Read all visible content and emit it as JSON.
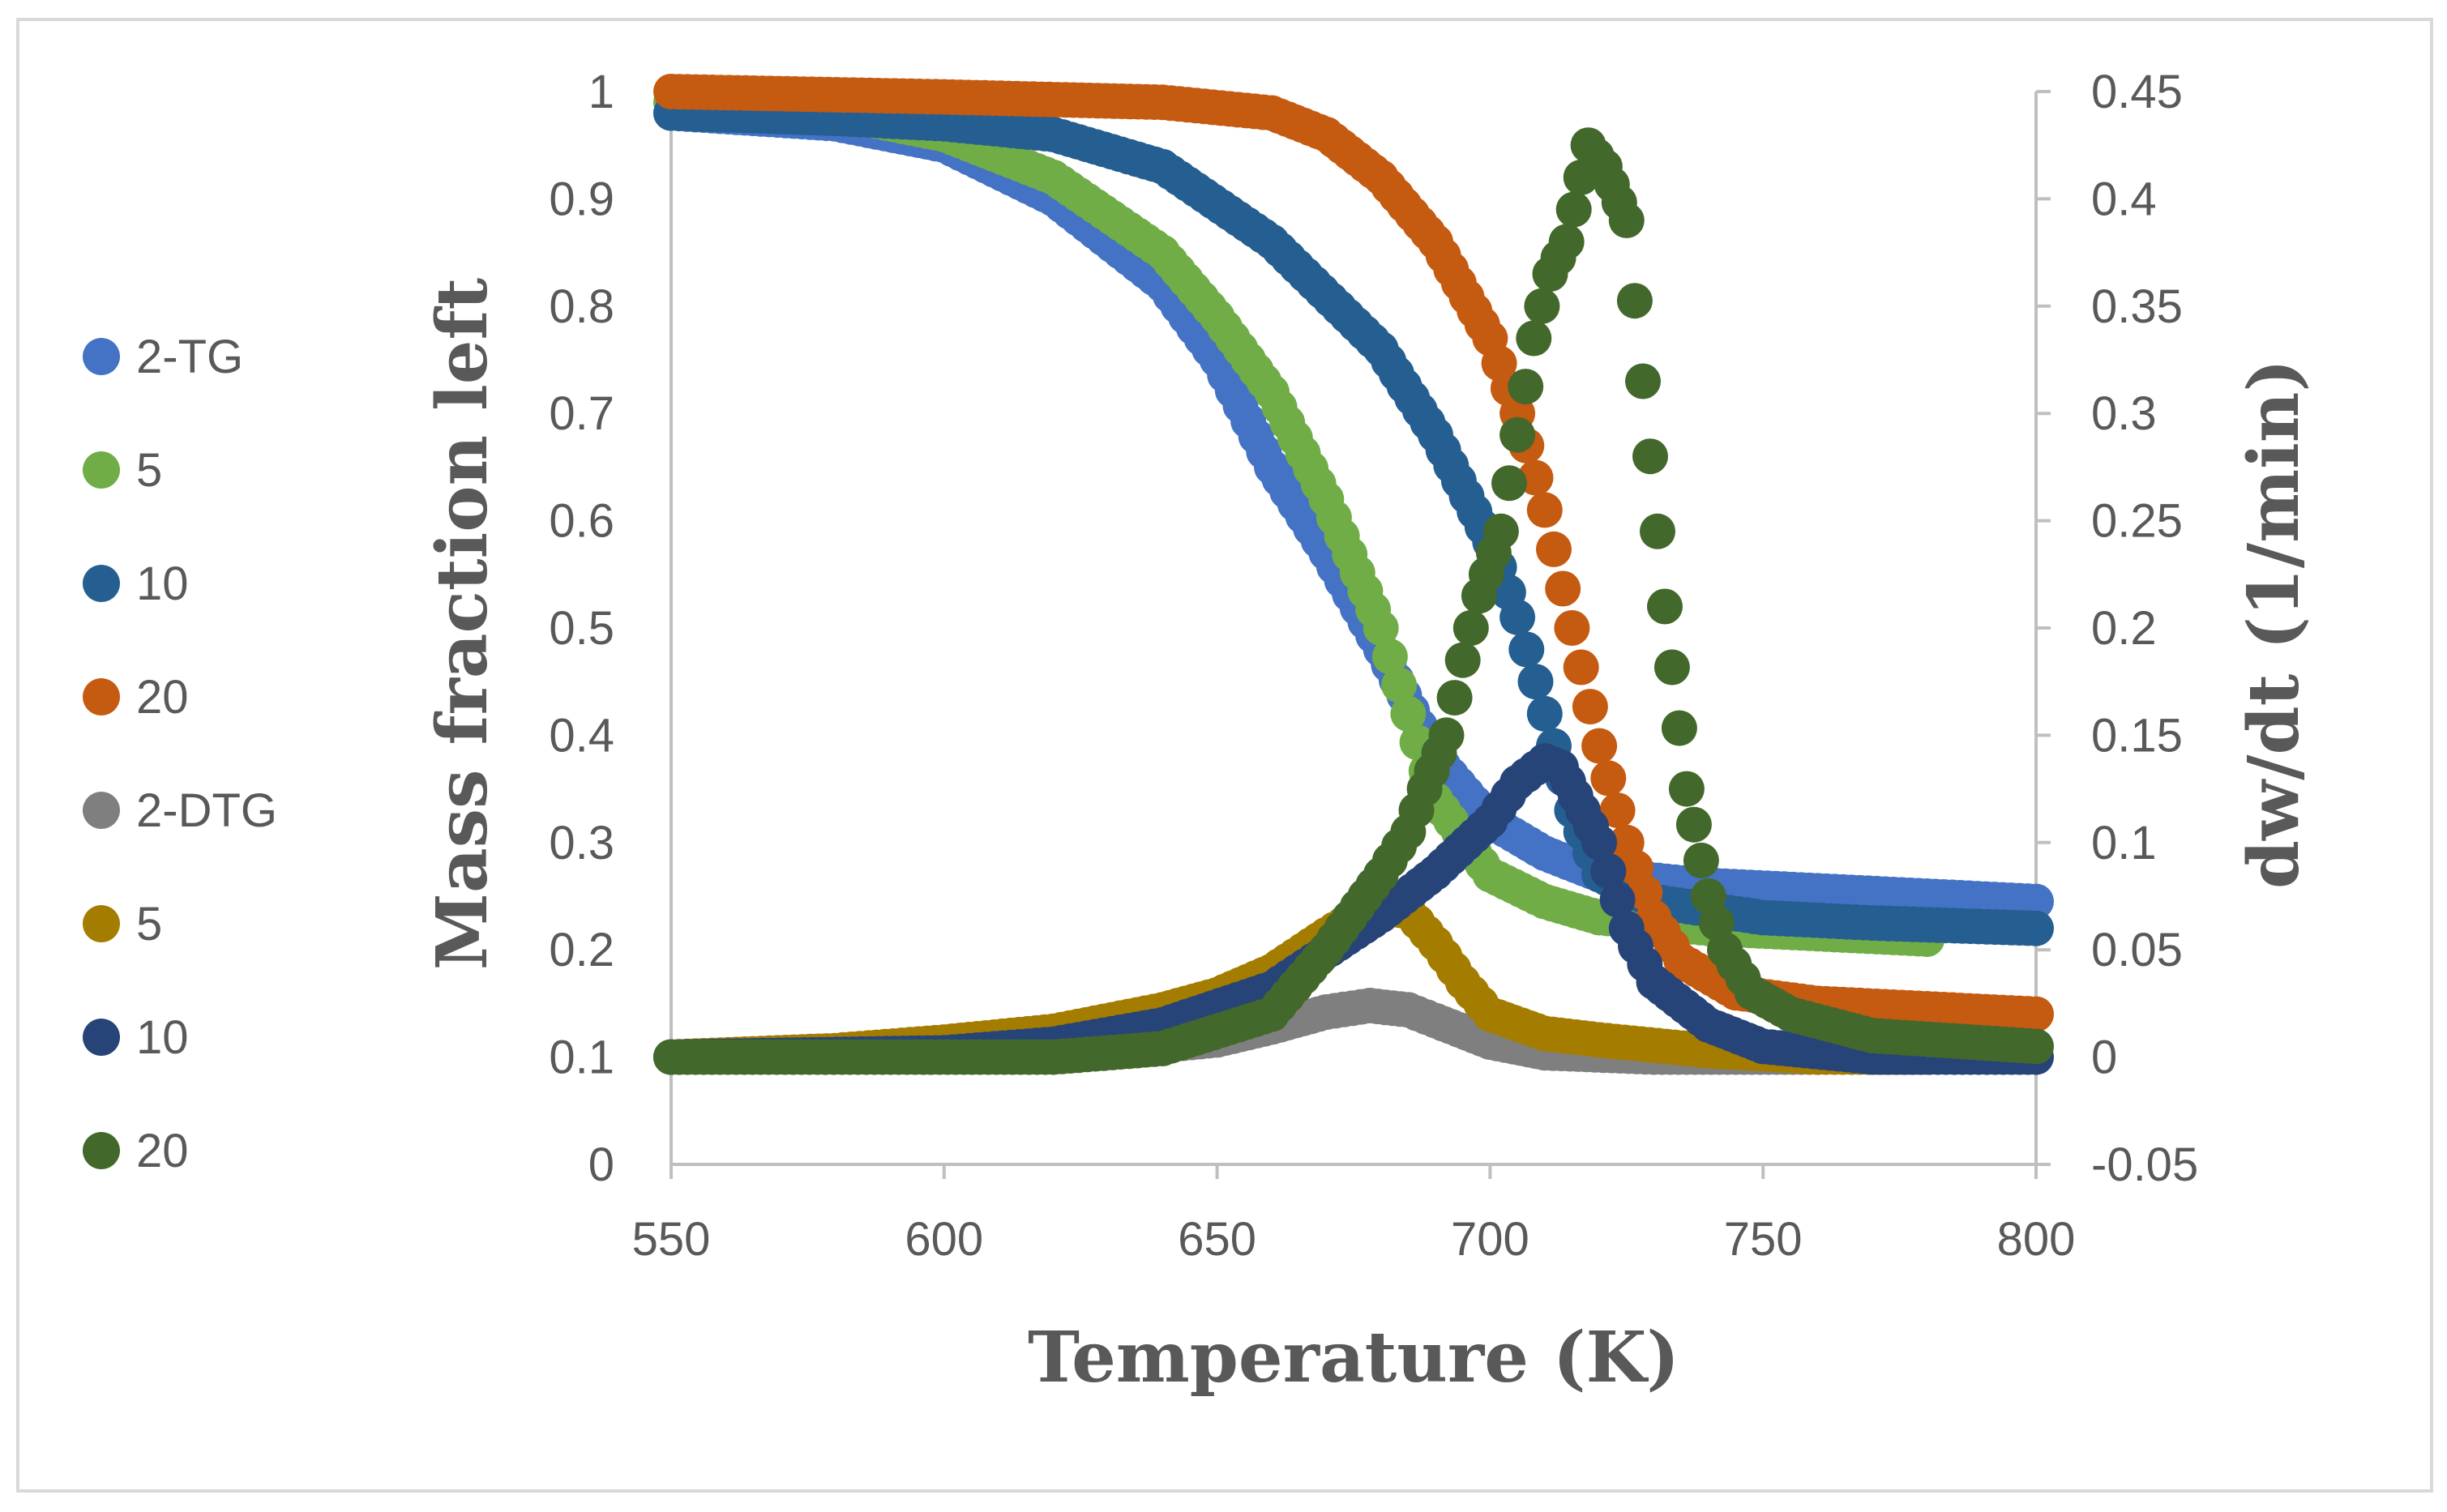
{
  "chart_data": {
    "type": "scatter",
    "title": "",
    "xlabel": "Temperature (K)",
    "ylabel": "Mass fraction left",
    "y2label": "dw/dt (1/min)",
    "xlim": [
      550,
      800
    ],
    "ylim": [
      0,
      1
    ],
    "y2lim": [
      -0.05,
      0.45
    ],
    "xticks": [
      "550",
      "600",
      "650",
      "700",
      "750",
      "800"
    ],
    "yticks": [
      "0",
      "0.1",
      "0.2",
      "0.3",
      "0.4",
      "0.5",
      "0.6",
      "0.7",
      "0.8",
      "0.9",
      "1"
    ],
    "y2ticks": [
      "-0.05",
      "0",
      "0.05",
      "0.1",
      "0.15",
      "0.2",
      "0.25",
      "0.3",
      "0.35",
      "0.4",
      "0.45"
    ],
    "grid": false,
    "legend_position": "left",
    "series": [
      {
        "name": "2-TG",
        "axis": "left",
        "color": "#4472C4",
        "points": [
          [
            550,
            0.98
          ],
          [
            580,
            0.97
          ],
          [
            600,
            0.95
          ],
          [
            620,
            0.9
          ],
          [
            640,
            0.82
          ],
          [
            650,
            0.75
          ],
          [
            660,
            0.65
          ],
          [
            670,
            0.57
          ],
          [
            680,
            0.48
          ],
          [
            690,
            0.38
          ],
          [
            700,
            0.32
          ],
          [
            710,
            0.29
          ],
          [
            720,
            0.27
          ],
          [
            740,
            0.26
          ],
          [
            760,
            0.255
          ],
          [
            780,
            0.25
          ],
          [
            800,
            0.245
          ]
        ]
      },
      {
        "name": "5",
        "axis": "left",
        "color": "#70AD47",
        "points": [
          [
            550,
            0.99
          ],
          [
            580,
            0.98
          ],
          [
            600,
            0.96
          ],
          [
            620,
            0.92
          ],
          [
            640,
            0.85
          ],
          [
            650,
            0.79
          ],
          [
            660,
            0.72
          ],
          [
            670,
            0.62
          ],
          [
            680,
            0.5
          ],
          [
            685,
            0.42
          ],
          [
            690,
            0.34
          ],
          [
            700,
            0.27
          ],
          [
            710,
            0.245
          ],
          [
            720,
            0.23
          ],
          [
            740,
            0.22
          ],
          [
            760,
            0.215
          ],
          [
            780,
            0.21
          ]
        ]
      },
      {
        "name": "10",
        "axis": "left",
        "color": "#255E91",
        "points": [
          [
            550,
            0.98
          ],
          [
            580,
            0.975
          ],
          [
            600,
            0.97
          ],
          [
            620,
            0.96
          ],
          [
            640,
            0.93
          ],
          [
            660,
            0.86
          ],
          [
            680,
            0.76
          ],
          [
            690,
            0.68
          ],
          [
            700,
            0.58
          ],
          [
            705,
            0.51
          ],
          [
            710,
            0.42
          ],
          [
            715,
            0.33
          ],
          [
            720,
            0.27
          ],
          [
            730,
            0.245
          ],
          [
            750,
            0.23
          ],
          [
            770,
            0.225
          ],
          [
            800,
            0.22
          ]
        ]
      },
      {
        "name": "20",
        "axis": "left",
        "color": "#C55A11",
        "points": [
          [
            550,
            1.0
          ],
          [
            600,
            0.995
          ],
          [
            640,
            0.99
          ],
          [
            660,
            0.98
          ],
          [
            670,
            0.96
          ],
          [
            680,
            0.92
          ],
          [
            690,
            0.86
          ],
          [
            700,
            0.77
          ],
          [
            705,
            0.7
          ],
          [
            710,
            0.61
          ],
          [
            715,
            0.5
          ],
          [
            720,
            0.39
          ],
          [
            725,
            0.3
          ],
          [
            730,
            0.23
          ],
          [
            735,
            0.19
          ],
          [
            745,
            0.16
          ],
          [
            760,
            0.15
          ],
          [
            780,
            0.145
          ],
          [
            800,
            0.14
          ]
        ]
      },
      {
        "name": "2-DTG",
        "axis": "right",
        "color": "#7F7F7F",
        "points": [
          [
            550,
            0.0
          ],
          [
            600,
            0.001
          ],
          [
            630,
            0.003
          ],
          [
            650,
            0.008
          ],
          [
            660,
            0.014
          ],
          [
            670,
            0.021
          ],
          [
            678,
            0.024
          ],
          [
            685,
            0.022
          ],
          [
            690,
            0.017
          ],
          [
            700,
            0.007
          ],
          [
            710,
            0.002
          ],
          [
            730,
            0.0
          ],
          [
            760,
            0.0
          ]
        ]
      },
      {
        "name": "5",
        "axis": "right",
        "color": "#A47D00",
        "points": [
          [
            550,
            0.0
          ],
          [
            580,
            0.003
          ],
          [
            600,
            0.007
          ],
          [
            620,
            0.012
          ],
          [
            640,
            0.022
          ],
          [
            650,
            0.029
          ],
          [
            660,
            0.04
          ],
          [
            670,
            0.057
          ],
          [
            678,
            0.07
          ],
          [
            685,
            0.068
          ],
          [
            690,
            0.053
          ],
          [
            695,
            0.035
          ],
          [
            700,
            0.02
          ],
          [
            710,
            0.011
          ],
          [
            720,
            0.008
          ],
          [
            740,
            0.003
          ],
          [
            760,
            0.0
          ],
          [
            780,
            0.0
          ]
        ]
      },
      {
        "name": "10",
        "axis": "right",
        "color": "#264478",
        "points": [
          [
            550,
            0.0
          ],
          [
            600,
            0.002
          ],
          [
            620,
            0.006
          ],
          [
            640,
            0.015
          ],
          [
            660,
            0.032
          ],
          [
            680,
            0.066
          ],
          [
            690,
            0.086
          ],
          [
            700,
            0.11
          ],
          [
            705,
            0.128
          ],
          [
            710,
            0.138
          ],
          [
            713,
            0.135
          ],
          [
            717,
            0.115
          ],
          [
            720,
            0.1
          ],
          [
            725,
            0.06
          ],
          [
            730,
            0.035
          ],
          [
            740,
            0.015
          ],
          [
            750,
            0.005
          ],
          [
            770,
            0.0
          ],
          [
            800,
            0.0
          ]
        ]
      },
      {
        "name": "20",
        "axis": "right",
        "color": "#43682B",
        "points": [
          [
            550,
            0.0
          ],
          [
            620,
            0.0
          ],
          [
            640,
            0.004
          ],
          [
            660,
            0.02
          ],
          [
            670,
            0.05
          ],
          [
            680,
            0.085
          ],
          [
            685,
            0.105
          ],
          [
            688,
            0.125
          ],
          [
            692,
            0.15
          ],
          [
            695,
            0.185
          ],
          [
            698,
            0.215
          ],
          [
            702,
            0.245
          ],
          [
            705,
            0.29
          ],
          [
            708,
            0.335
          ],
          [
            711,
            0.365
          ],
          [
            714,
            0.38
          ],
          [
            718,
            0.425
          ],
          [
            721,
            0.415
          ],
          [
            725,
            0.39
          ],
          [
            728,
            0.315
          ],
          [
            732,
            0.21
          ],
          [
            736,
            0.125
          ],
          [
            740,
            0.075
          ],
          [
            743,
            0.05
          ],
          [
            748,
            0.03
          ],
          [
            755,
            0.02
          ],
          [
            770,
            0.01
          ],
          [
            800,
            0.005
          ]
        ]
      }
    ]
  }
}
